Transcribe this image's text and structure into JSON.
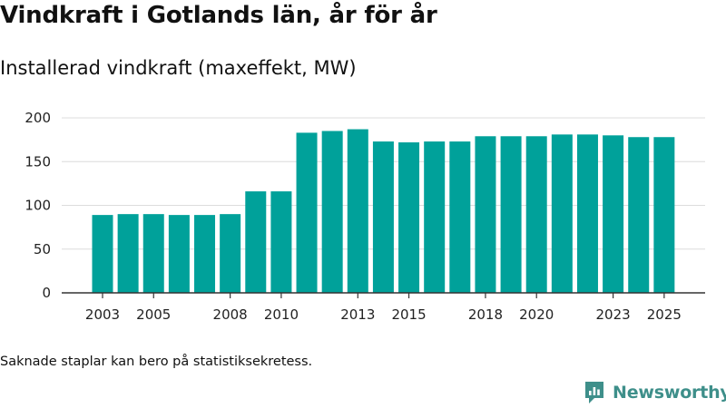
{
  "title": "Vindkraft i Gotlands län, år för år",
  "subtitle": "Installerad vindkraft (maxeffekt, MW)",
  "footnote": "Saknade staplar kan bero på statistiksekretess.",
  "brand": {
    "name": "Newsworthy",
    "icon": "newsworthy-logo-icon"
  },
  "colors": {
    "bar": "#00a19a",
    "grid": "#dcdcdc",
    "axis": "#333333",
    "brand": "#3e8f8a"
  },
  "chart_data": {
    "type": "bar",
    "title": "Installerad vindkraft (maxeffekt, MW)",
    "xlabel": "",
    "ylabel": "",
    "ylim": [
      0,
      200
    ],
    "yticks": [
      0,
      50,
      100,
      150,
      200
    ],
    "xticks": [
      "2003",
      "2005",
      "2008",
      "2010",
      "2013",
      "2015",
      "2018",
      "2020",
      "2023",
      "2025"
    ],
    "categories": [
      "2003",
      "2004",
      "2005",
      "2006",
      "2007",
      "2008",
      "2009",
      "2010",
      "2011",
      "2012",
      "2013",
      "2014",
      "2015",
      "2016",
      "2017",
      "2018",
      "2019",
      "2020",
      "2021",
      "2022",
      "2023",
      "2024",
      "2025"
    ],
    "values": [
      89,
      90,
      90,
      89,
      89,
      90,
      116,
      116,
      183,
      185,
      187,
      173,
      172,
      173,
      173,
      179,
      179,
      179,
      181,
      181,
      180,
      178,
      178
    ],
    "grid": true
  }
}
